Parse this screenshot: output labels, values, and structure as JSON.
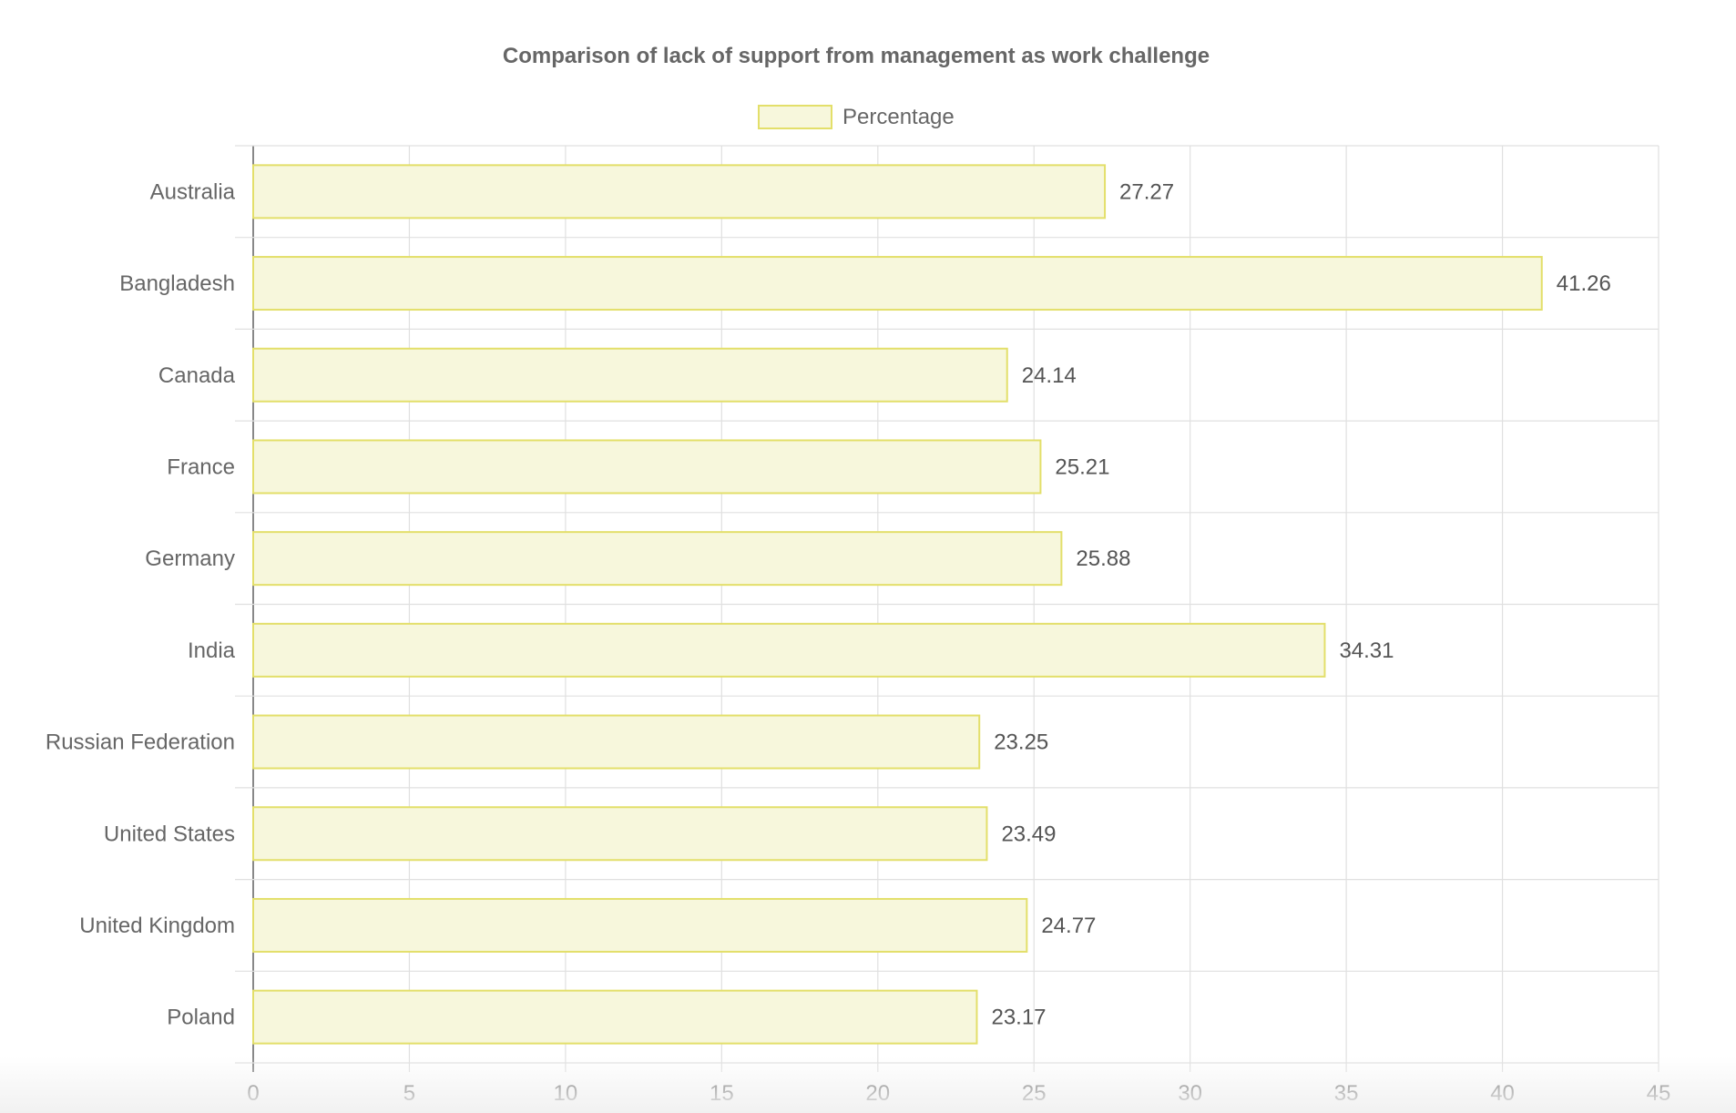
{
  "chart_data": {
    "type": "bar",
    "orientation": "horizontal",
    "title": "Comparison of lack of support from management as work challenge",
    "categories": [
      "Australia",
      "Bangladesh",
      "Canada",
      "France",
      "Germany",
      "India",
      "Russian Federation",
      "United States",
      "United Kingdom",
      "Poland"
    ],
    "series": [
      {
        "name": "Percentage",
        "values": [
          27.27,
          41.26,
          24.14,
          25.21,
          25.88,
          34.31,
          23.25,
          23.49,
          24.77,
          23.17
        ],
        "fill_color": "#f7f7dc",
        "border_color": "#e3df6a"
      }
    ],
    "value_labels": [
      "27.27",
      "41.26",
      "24.14",
      "25.21",
      "25.88",
      "34.31",
      "23.25",
      "23.49",
      "24.77",
      "23.17"
    ],
    "x_ticks": [
      "0",
      "5",
      "10",
      "15",
      "20",
      "25",
      "30",
      "35",
      "40",
      "45"
    ],
    "xlim": [
      0,
      45
    ],
    "grid": true,
    "legend_position": "top-center"
  }
}
